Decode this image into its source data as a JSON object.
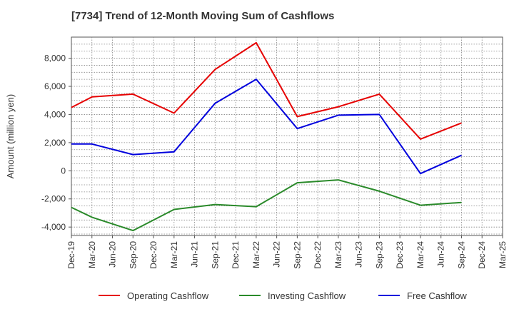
{
  "chart_data": {
    "type": "line",
    "title": "[7734]  Trend of 12-Month Moving Sum of Cashflows",
    "ylabel": "Amount (million yen)",
    "xlabel": "",
    "categories": [
      "Dec-19",
      "Mar-20",
      "Jun-20",
      "Sep-20",
      "Dec-20",
      "Mar-21",
      "Jun-21",
      "Sep-21",
      "Dec-21",
      "Mar-22",
      "Jun-22",
      "Sep-22",
      "Dec-22",
      "Mar-23",
      "Jun-23",
      "Sep-23",
      "Dec-23",
      "Mar-24",
      "Jun-24",
      "Sep-24",
      "Dec-24",
      "Mar-25"
    ],
    "ylim": [
      -4600,
      9500
    ],
    "yticks": [
      -4000,
      -2000,
      0,
      2000,
      4000,
      6000,
      8000
    ],
    "ytick_labels": [
      "-4,000",
      "-2,000",
      "0",
      "2,000",
      "4,000",
      "6,000",
      "8,000"
    ],
    "grid": true,
    "legend_position": "bottom",
    "series": [
      {
        "name": "Operating Cashflow",
        "color": "#e60000",
        "values": [
          4500,
          5250,
          null,
          5450,
          null,
          4100,
          null,
          7200,
          null,
          9100,
          null,
          3850,
          null,
          4550,
          null,
          5450,
          null,
          2250,
          null,
          3400,
          null,
          null
        ]
      },
      {
        "name": "Investing Cashflow",
        "color": "#2a8a2a",
        "values": [
          -2600,
          -3300,
          null,
          -4250,
          null,
          -2750,
          null,
          -2400,
          null,
          -2550,
          null,
          -850,
          null,
          -650,
          null,
          -1450,
          null,
          -2450,
          null,
          -2250,
          null,
          null
        ]
      },
      {
        "name": "Free Cashflow",
        "color": "#0000dd",
        "values": [
          1900,
          1900,
          null,
          1150,
          null,
          1350,
          null,
          4800,
          null,
          6500,
          null,
          3000,
          null,
          3950,
          null,
          4000,
          null,
          -200,
          null,
          1100,
          null,
          null
        ]
      }
    ]
  }
}
